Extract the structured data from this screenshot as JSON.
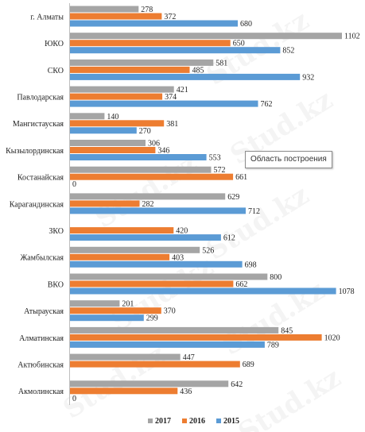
{
  "chart_data": {
    "type": "bar",
    "orientation": "horizontal",
    "categories": [
      "г. Алматы",
      "ЮКО",
      "СКО",
      "Павлодарская",
      "Мангистауская",
      "Кызылординская",
      "Костанайская",
      "Карагандинская",
      "ЗКО",
      "Жамбылская",
      "ВКО",
      "Атырауская",
      "Алматинская",
      "Актюбинская",
      "Акмолинская"
    ],
    "series": [
      {
        "name": "2017",
        "color": "#a5a5a5",
        "values": [
          278,
          1102,
          581,
          421,
          140,
          306,
          572,
          629,
          0,
          526,
          800,
          201,
          845,
          447,
          642
        ]
      },
      {
        "name": "2016",
        "color": "#ed7d31",
        "values": [
          372,
          650,
          485,
          374,
          381,
          346,
          661,
          282,
          420,
          403,
          662,
          370,
          1020,
          689,
          436
        ]
      },
      {
        "name": "2015",
        "color": "#5b9bd5",
        "values": [
          680,
          852,
          932,
          762,
          270,
          553,
          0,
          712,
          612,
          698,
          1078,
          299,
          789,
          0,
          0
        ]
      }
    ],
    "value_labels": [
      [
        "278",
        "372",
        "680"
      ],
      [
        "1102",
        "650",
        "852"
      ],
      [
        "581",
        "485",
        "932"
      ],
      [
        "421",
        "374",
        "762"
      ],
      [
        "140",
        "381",
        "270"
      ],
      [
        "306",
        "346",
        "553"
      ],
      [
        "572",
        "661",
        "0"
      ],
      [
        "629",
        "282",
        "712"
      ],
      [
        "",
        "420",
        "612"
      ],
      [
        "526",
        "403",
        "698"
      ],
      [
        "800",
        "662",
        "1078"
      ],
      [
        "201",
        "370",
        "299"
      ],
      [
        "845",
        "1020",
        "789"
      ],
      [
        "447",
        "689",
        ""
      ],
      [
        "642",
        "436",
        "0"
      ]
    ],
    "legend_position": "bottom",
    "gridlines": false
  },
  "tooltip_text": "Область построения",
  "watermark_text": "Stud.kz"
}
